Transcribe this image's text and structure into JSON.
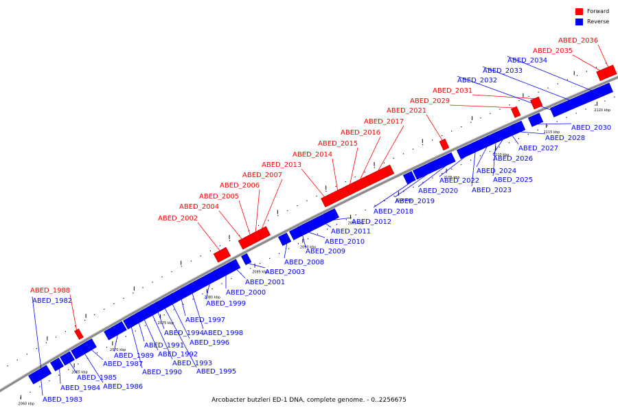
{
  "colors": {
    "forward": "#ff0000",
    "reverse": "#0000ff",
    "backbone": "#8c8c8c"
  },
  "legend": {
    "forward": "Forward",
    "reverse": "Reverse"
  },
  "caption": "Arcobacter butzleri ED-1 DNA, complete genome. - 0..2256675",
  "scale_ticks": [
    "2060 kbp",
    "2065 kbp",
    "2070 kbp",
    "2075 kbp",
    "2080 kbp",
    "2085 kbp",
    "2090 kbp",
    "2095 kbp",
    "2100 kbp",
    "2105 kbp",
    "2110 kbp",
    "2115 kbp",
    "2120 kbp"
  ],
  "genes": [
    {
      "name": "ABED_1982",
      "strand": "reverse"
    },
    {
      "name": "ABED_1983",
      "strand": "reverse"
    },
    {
      "name": "ABED_1984",
      "strand": "reverse"
    },
    {
      "name": "ABED_1985",
      "strand": "reverse"
    },
    {
      "name": "ABED_1986",
      "strand": "reverse"
    },
    {
      "name": "ABED_1987",
      "strand": "reverse"
    },
    {
      "name": "ABED_1988",
      "strand": "forward"
    },
    {
      "name": "ABED_1989",
      "strand": "reverse"
    },
    {
      "name": "ABED_1990",
      "strand": "reverse"
    },
    {
      "name": "ABED_1991",
      "strand": "reverse"
    },
    {
      "name": "ABED_1992",
      "strand": "reverse"
    },
    {
      "name": "ABED_1993",
      "strand": "reverse"
    },
    {
      "name": "ABED_1994",
      "strand": "reverse"
    },
    {
      "name": "ABED_1995",
      "strand": "reverse"
    },
    {
      "name": "ABED_1996",
      "strand": "reverse"
    },
    {
      "name": "ABED_1997",
      "strand": "reverse"
    },
    {
      "name": "ABED_1998",
      "strand": "reverse"
    },
    {
      "name": "ABED_1999",
      "strand": "reverse"
    },
    {
      "name": "ABED_2000",
      "strand": "reverse"
    },
    {
      "name": "ABED_2001",
      "strand": "reverse"
    },
    {
      "name": "ABED_2002",
      "strand": "forward"
    },
    {
      "name": "ABED_2003",
      "strand": "reverse"
    },
    {
      "name": "ABED_2004",
      "strand": "forward"
    },
    {
      "name": "ABED_2005",
      "strand": "forward"
    },
    {
      "name": "ABED_2006",
      "strand": "forward"
    },
    {
      "name": "ABED_2007",
      "strand": "forward"
    },
    {
      "name": "ABED_2008",
      "strand": "reverse"
    },
    {
      "name": "ABED_2009",
      "strand": "reverse"
    },
    {
      "name": "ABED_2010",
      "strand": "reverse"
    },
    {
      "name": "ABED_2011",
      "strand": "reverse"
    },
    {
      "name": "ABED_2012",
      "strand": "reverse"
    },
    {
      "name": "ABED_2013",
      "strand": "forward"
    },
    {
      "name": "ABED_2014",
      "strand": "forward"
    },
    {
      "name": "ABED_2015",
      "strand": "forward"
    },
    {
      "name": "ABED_2016",
      "strand": "forward"
    },
    {
      "name": "ABED_2017",
      "strand": "forward"
    },
    {
      "name": "ABED_2018",
      "strand": "reverse"
    },
    {
      "name": "ABED_2019",
      "strand": "reverse"
    },
    {
      "name": "ABED_2020",
      "strand": "reverse"
    },
    {
      "name": "ABED_2021",
      "strand": "forward"
    },
    {
      "name": "ABED_2022",
      "strand": "reverse"
    },
    {
      "name": "ABED_2023",
      "strand": "reverse"
    },
    {
      "name": "ABED_2024",
      "strand": "reverse"
    },
    {
      "name": "ABED_2025",
      "strand": "reverse"
    },
    {
      "name": "ABED_2026",
      "strand": "reverse"
    },
    {
      "name": "ABED_2027",
      "strand": "reverse"
    },
    {
      "name": "ABED_2028",
      "strand": "reverse"
    },
    {
      "name": "ABED_2029",
      "strand": "forward"
    },
    {
      "name": "ABED_2030",
      "strand": "reverse"
    },
    {
      "name": "ABED_2031",
      "strand": "forward"
    },
    {
      "name": "ABED_2032",
      "strand": "reverse"
    },
    {
      "name": "ABED_2033",
      "strand": "reverse"
    },
    {
      "name": "ABED_2034",
      "strand": "reverse"
    },
    {
      "name": "ABED_2035",
      "strand": "forward"
    },
    {
      "name": "ABED_2036",
      "strand": "forward"
    }
  ]
}
